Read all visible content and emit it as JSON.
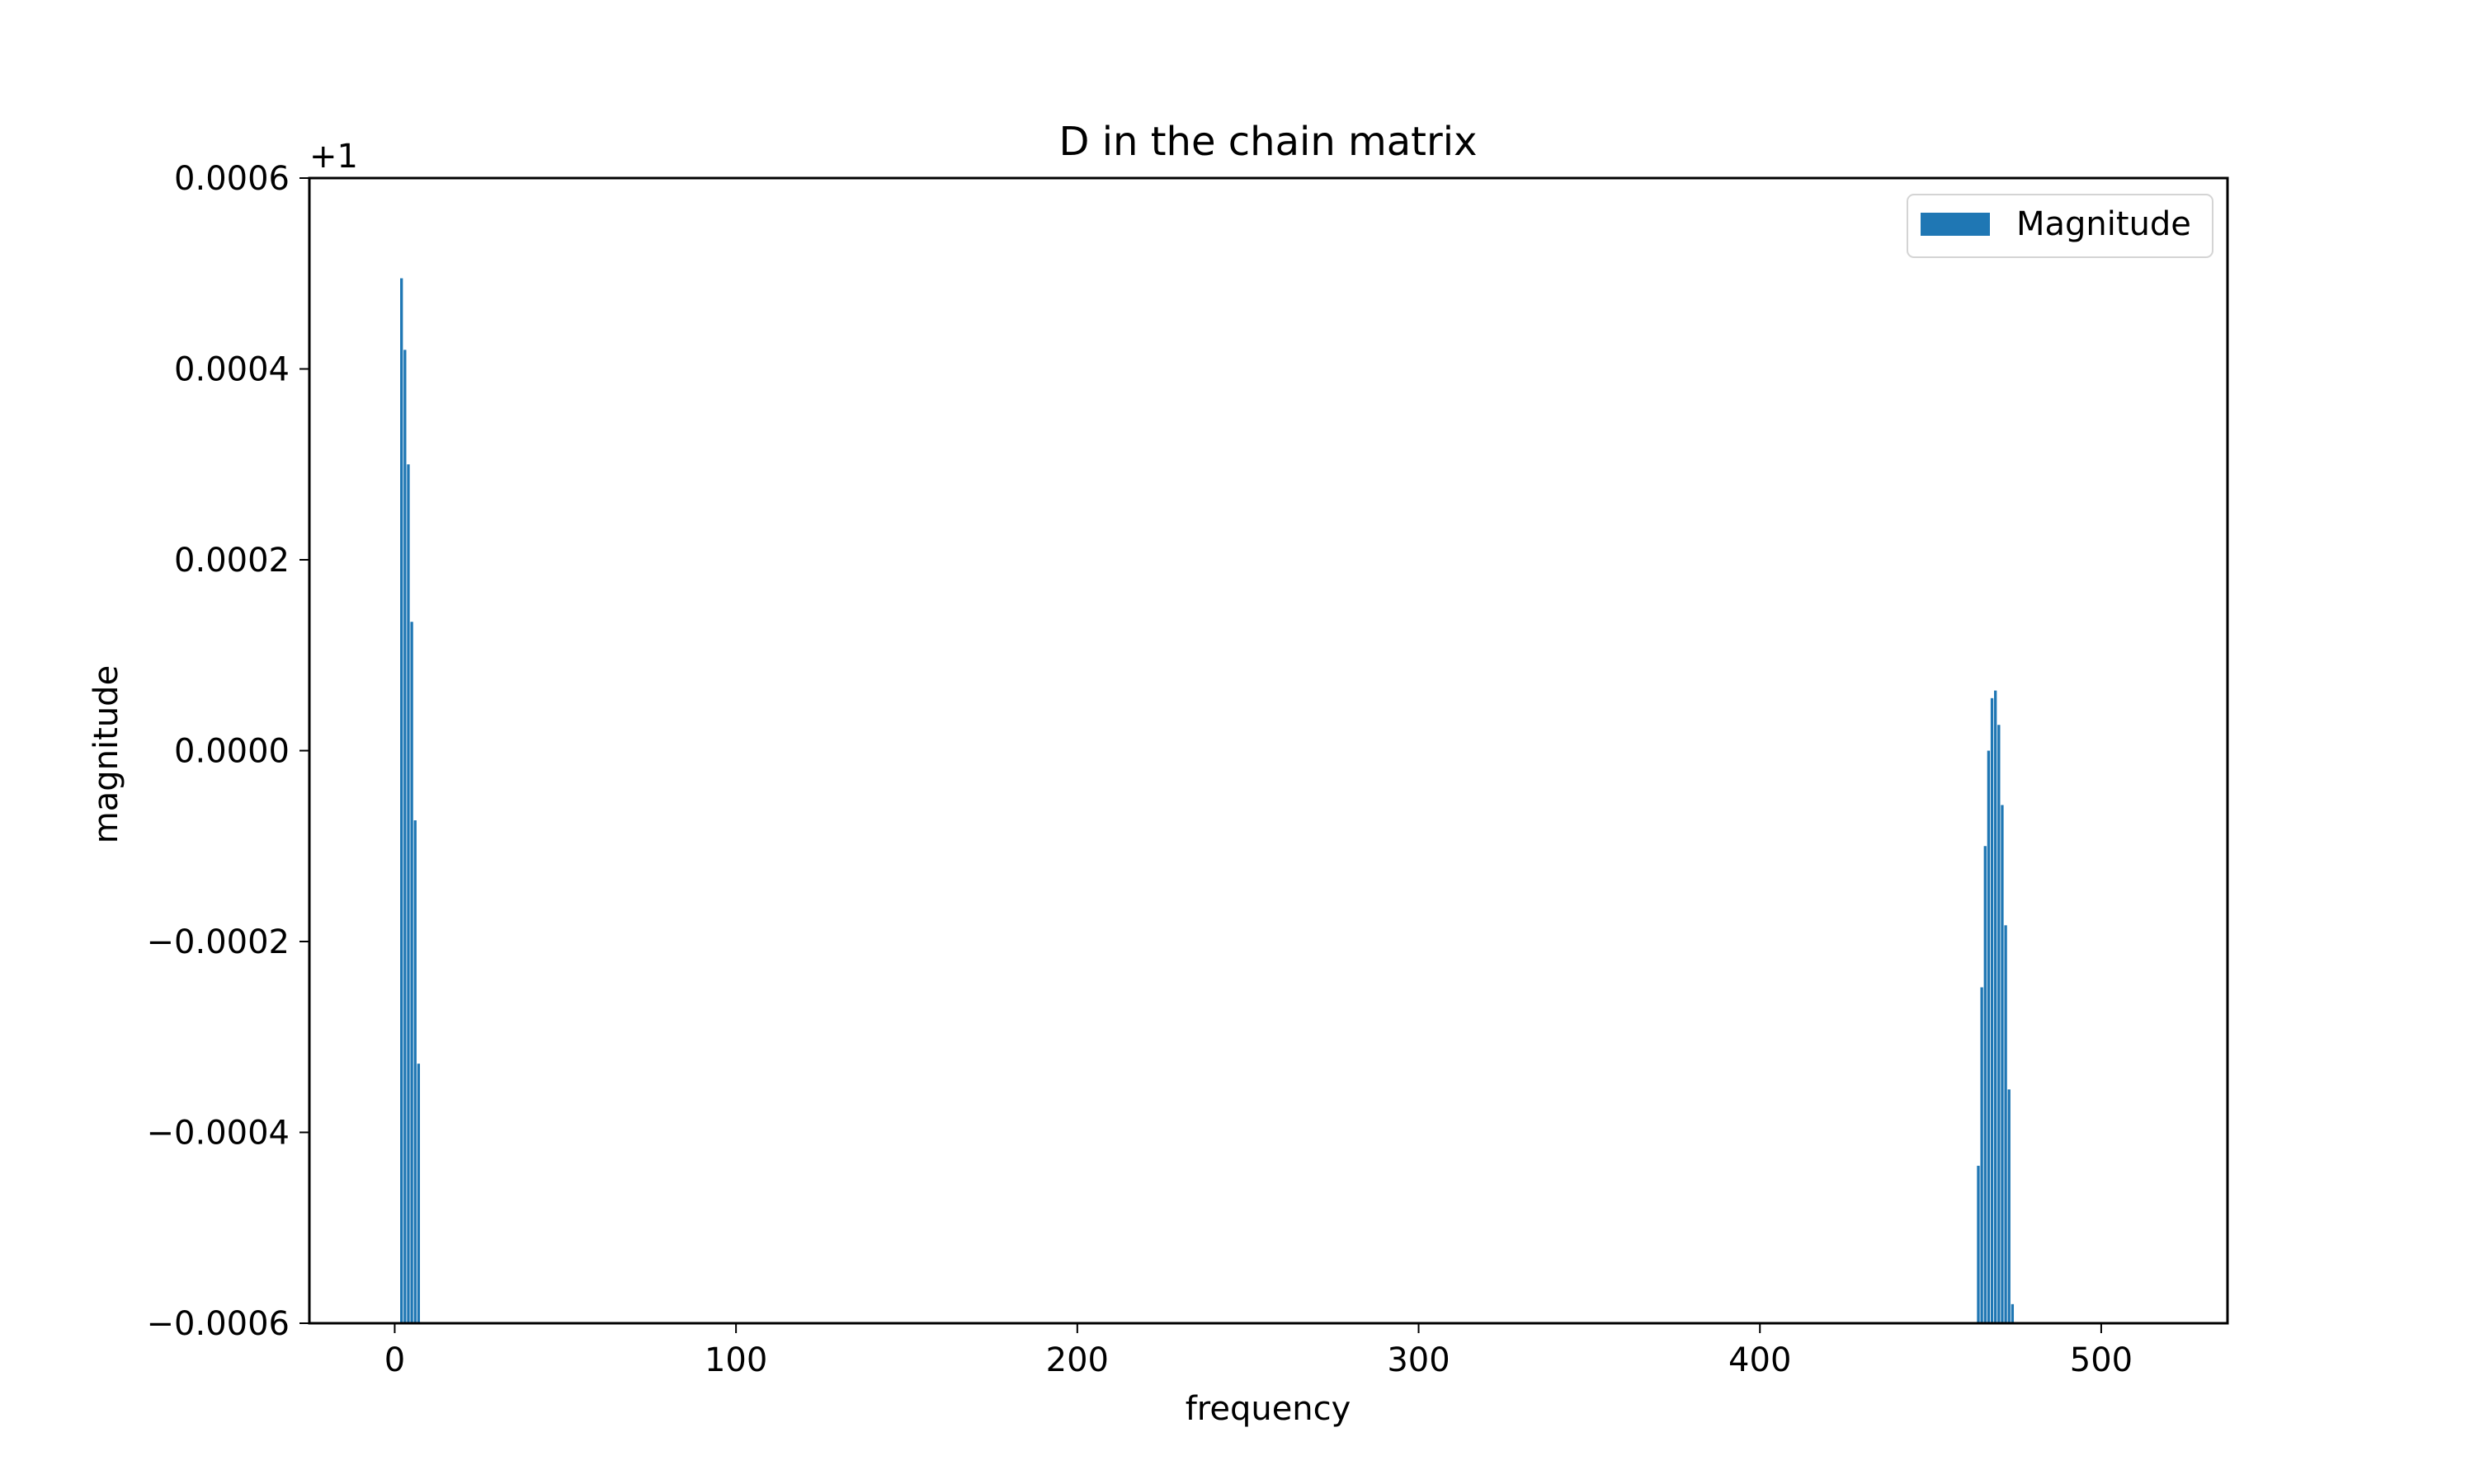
{
  "chart_data": {
    "type": "bar",
    "title": "D in the chain matrix",
    "xlabel": "frequency",
    "ylabel": "magnitude",
    "y_offset_label": "+1",
    "y_offset": 1,
    "xlim": [
      -25,
      537
    ],
    "ylim": [
      -0.0006,
      0.0006
    ],
    "x_ticks": [
      0,
      100,
      200,
      300,
      400,
      500
    ],
    "x_tick_labels": [
      "0",
      "100",
      "200",
      "300",
      "400",
      "500"
    ],
    "y_ticks": [
      -0.0006,
      -0.0004,
      -0.0002,
      0.0,
      0.0002,
      0.0004,
      0.0006
    ],
    "y_tick_labels": [
      "−0.0006",
      "−0.0004",
      "−0.0002",
      "0.0000",
      "0.0002",
      "0.0004",
      "0.0006"
    ],
    "grid": false,
    "legend_position": "top-right",
    "series": [
      {
        "name": "Magnitude",
        "color": "#1f77b4",
        "x": [
          2,
          3,
          4,
          5,
          6,
          7,
          464,
          465,
          466,
          467,
          468,
          469,
          470,
          471,
          472,
          473,
          474
        ],
        "values": [
          0.000495,
          0.00042,
          0.0003,
          0.000135,
          -7.3e-05,
          -0.000328,
          -0.000435,
          -0.000248,
          -0.0001,
          0.0,
          5.5e-05,
          6.3e-05,
          2.7e-05,
          -5.7e-05,
          -0.000183,
          -0.000355,
          -0.00058
        ]
      }
    ]
  }
}
